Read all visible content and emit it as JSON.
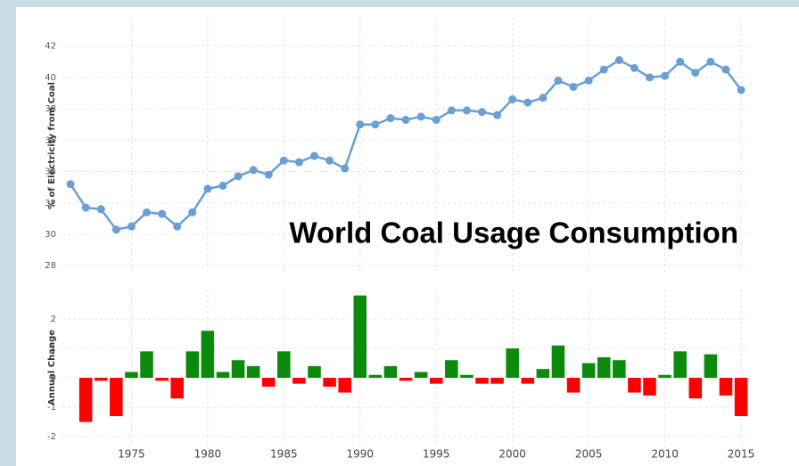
{
  "chart_data": [
    {
      "type": "line",
      "title": "World Coal Usage Consumption",
      "ylabel": "% of Electricity from Coal",
      "x": [
        1971,
        1972,
        1973,
        1974,
        1975,
        1976,
        1977,
        1978,
        1979,
        1980,
        1981,
        1982,
        1983,
        1984,
        1985,
        1986,
        1987,
        1988,
        1989,
        1990,
        1991,
        1992,
        1993,
        1994,
        1995,
        1996,
        1997,
        1998,
        1999,
        2000,
        2001,
        2002,
        2003,
        2004,
        2005,
        2006,
        2007,
        2008,
        2009,
        2010,
        2011,
        2012,
        2013,
        2014,
        2015
      ],
      "values": [
        33.2,
        31.7,
        31.6,
        30.3,
        30.5,
        31.4,
        31.3,
        30.5,
        31.4,
        32.9,
        33.1,
        33.7,
        34.1,
        33.8,
        34.7,
        34.6,
        35.0,
        34.7,
        34.2,
        37.0,
        37.0,
        37.4,
        37.3,
        37.5,
        37.3,
        37.9,
        37.9,
        37.8,
        37.6,
        38.6,
        38.4,
        38.7,
        39.8,
        39.4,
        39.8,
        40.5,
        41.1,
        40.6,
        40.0,
        40.1,
        41.0,
        40.3,
        41.0,
        40.5,
        39.2
      ],
      "color": "#6a9fd4",
      "xlim": [
        1970.5,
        2015.5
      ],
      "ylim": [
        27.5,
        43.8
      ],
      "yticks": [
        28,
        30,
        32,
        34,
        36,
        38,
        40,
        42
      ],
      "grid": true
    },
    {
      "type": "bar",
      "ylabel": "Annual Change",
      "x": [
        1972,
        1973,
        1974,
        1975,
        1976,
        1977,
        1978,
        1979,
        1980,
        1981,
        1982,
        1983,
        1984,
        1985,
        1986,
        1987,
        1988,
        1989,
        1990,
        1991,
        1992,
        1993,
        1994,
        1995,
        1996,
        1997,
        1998,
        1999,
        2000,
        2001,
        2002,
        2003,
        2004,
        2005,
        2006,
        2007,
        2008,
        2009,
        2010,
        2011,
        2012,
        2013,
        2014,
        2015
      ],
      "values": [
        -1.5,
        -0.1,
        -1.3,
        0.2,
        0.9,
        -0.1,
        -0.7,
        0.9,
        1.6,
        0.2,
        0.6,
        0.4,
        -0.3,
        0.9,
        -0.2,
        0.4,
        -0.3,
        -0.5,
        2.8,
        0.1,
        0.4,
        -0.1,
        0.2,
        -0.2,
        0.6,
        0.1,
        -0.2,
        -0.2,
        1.0,
        -0.2,
        0.3,
        1.1,
        -0.5,
        0.5,
        0.7,
        0.6,
        -0.5,
        -0.6,
        0.1,
        0.9,
        -0.7,
        0.8,
        -0.6,
        -1.3
      ],
      "color_positive": "#0b8a0b",
      "color_negative": "#ff0000",
      "xlim": [
        1970.5,
        2015.5
      ],
      "ylim": [
        -2.3,
        3.0
      ],
      "xticks": [
        1975,
        1980,
        1985,
        1990,
        1995,
        2000,
        2005,
        2010,
        2015
      ],
      "yticks": [
        -2,
        -1,
        0,
        1,
        2
      ],
      "grid": true
    }
  ]
}
